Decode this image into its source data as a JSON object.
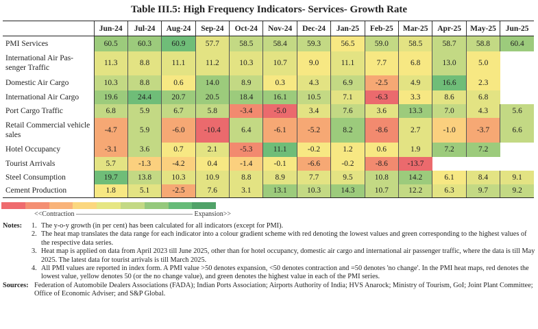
{
  "title": "Table III.5: High Frequency Indicators- Services- Growth Rate",
  "palette": {
    "R": "#eb6a6d",
    "RO": "#f28a6f",
    "O": "#f6a874",
    "LO": "#fbd07e",
    "Y": "#f7e883",
    "YG": "#e3e383",
    "LG": "#c3d984",
    "G": "#9ccb7c",
    "DG": "#6fbd78"
  },
  "table": {
    "columns": [
      "Jun-24",
      "Jul-24",
      "Aug-24",
      "Sep-24",
      "Oct-24",
      "Nov-24",
      "Dec-24",
      "Jan-25",
      "Feb-25",
      "Mar-25",
      "Apr-25",
      "May-25",
      "Jun-25"
    ],
    "rows": [
      {
        "label": "PMI Services",
        "values": [
          "60.5",
          "60.3",
          "60.9",
          "57.7",
          "58.5",
          "58.4",
          "59.3",
          "56.5",
          "59.0",
          "58.5",
          "58.7",
          "58.8",
          "60.4"
        ],
        "colors": [
          "G",
          "G",
          "DG",
          "YG",
          "LG",
          "LG",
          "LG",
          "Y",
          "LG",
          "YG",
          "LG",
          "LG",
          "G"
        ]
      },
      {
        "label": "International Air Pas- senger Traffic",
        "values": [
          "11.3",
          "8.8",
          "11.1",
          "11.2",
          "10.3",
          "10.7",
          "9.0",
          "11.1",
          "7.7",
          "6.8",
          "13.0",
          "5.0",
          ""
        ],
        "colors": [
          "YG",
          "YG",
          "YG",
          "YG",
          "YG",
          "YG",
          "Y",
          "YG",
          "Y",
          "Y",
          "LG",
          "Y",
          ""
        ]
      },
      {
        "label": "Domestic Air Cargo",
        "values": [
          "10.3",
          "8.8",
          "0.6",
          "14.0",
          "8.9",
          "0.3",
          "4.3",
          "6.9",
          "-2.5",
          "4.9",
          "16.6",
          "2.3",
          ""
        ],
        "colors": [
          "LG",
          "LG",
          "Y",
          "G",
          "LG",
          "Y",
          "YG",
          "LG",
          "O",
          "YG",
          "DG",
          "Y",
          ""
        ]
      },
      {
        "label": "International Air Cargo",
        "values": [
          "19.6",
          "24.4",
          "20.7",
          "20.5",
          "18.4",
          "16.1",
          "10.5",
          "7.1",
          "-6.3",
          "3.3",
          "8.6",
          "6.8",
          ""
        ],
        "colors": [
          "G",
          "DG",
          "G",
          "G",
          "G",
          "G",
          "LG",
          "YG",
          "R",
          "Y",
          "YG",
          "YG",
          ""
        ]
      },
      {
        "label": "Port Cargo Traffic",
        "values": [
          "6.8",
          "5.9",
          "6.7",
          "5.8",
          "-3.4",
          "-5.0",
          "3.4",
          "7.6",
          "3.6",
          "13.3",
          "7.0",
          "4.3",
          "5.6"
        ],
        "colors": [
          "LG",
          "LG",
          "LG",
          "LG",
          "RO",
          "R",
          "YG",
          "LG",
          "YG",
          "G",
          "LG",
          "YG",
          "LG"
        ]
      },
      {
        "label": "Retail Commercial vehicle sales",
        "values": [
          "-4.7",
          "5.9",
          "-6.0",
          "-10.4",
          "6.4",
          "-6.1",
          "-5.2",
          "8.2",
          "-8.6",
          "2.7",
          "-1.0",
          "-3.7",
          "6.6"
        ],
        "colors": [
          "O",
          "LG",
          "O",
          "R",
          "LG",
          "O",
          "O",
          "G",
          "RO",
          "YG",
          "LO",
          "O",
          "LG"
        ]
      },
      {
        "label": "Hotel Occupancy",
        "values": [
          "-3.1",
          "3.6",
          "0.7",
          "2.1",
          "-5.3",
          "11.1",
          "-0.2",
          "1.2",
          "0.6",
          "1.9",
          "7.2",
          "7.2",
          ""
        ],
        "colors": [
          "O",
          "LG",
          "Y",
          "YG",
          "RO",
          "DG",
          "Y",
          "Y",
          "Y",
          "YG",
          "G",
          "G",
          ""
        ]
      },
      {
        "label": "Tourist Arrivals",
        "values": [
          "5.7",
          "-1.3",
          "-4.2",
          "0.4",
          "-1.4",
          "-0.1",
          "-6.6",
          "-0.2",
          "-8.6",
          "-13.7",
          "",
          "",
          ""
        ],
        "colors": [
          "YG",
          "LO",
          "LO",
          "Y",
          "LO",
          "Y",
          "O",
          "Y",
          "RO",
          "R",
          "",
          "",
          ""
        ]
      },
      {
        "label": "Steel Consumption",
        "values": [
          "19.7",
          "13.8",
          "10.3",
          "10.9",
          "8.8",
          "8.9",
          "7.7",
          "9.5",
          "10.8",
          "14.2",
          "6.1",
          "8.4",
          "9.1"
        ],
        "colors": [
          "DG",
          "LG",
          "YG",
          "YG",
          "YG",
          "YG",
          "YG",
          "YG",
          "LG",
          "G",
          "Y",
          "YG",
          "YG"
        ]
      },
      {
        "label": "Cement Production",
        "values": [
          "1.8",
          "5.1",
          "-2.5",
          "7.6",
          "3.1",
          "13.1",
          "10.3",
          "14.3",
          "10.7",
          "12.2",
          "6.3",
          "9.7",
          "9.2"
        ],
        "colors": [
          "Y",
          "YG",
          "O",
          "YG",
          "YG",
          "G",
          "LG",
          "G",
          "LG",
          "LG",
          "YG",
          "LG",
          "LG"
        ]
      }
    ]
  },
  "legend": {
    "colors": [
      "#ef6b6e",
      "#f48f73",
      "#f9b37a",
      "#fbd77f",
      "#e6e683",
      "#c3d984",
      "#95c97c",
      "#66bb78",
      "#50a268"
    ],
    "label": "<<Contraction ————————————————— Expansion>>"
  },
  "notes": {
    "label": "Notes:",
    "items": [
      {
        "num": "1.",
        "text": "The y-o-y growth (in per cent) has been calculated for all indicators (except for PMI)."
      },
      {
        "num": "2.",
        "text": "The heat map translates the data range for each indicator into a colour gradient scheme with red denoting the lowest values and green corresponding to the highest values of the respective data series."
      },
      {
        "num": "3.",
        "text": "Heat map is applied on data from April 2023 till June 2025, other than for hotel occupancy, domestic air cargo and international air passenger traffic, where the data is till May 2025. The latest data for tourist arrivals is till March 2025."
      },
      {
        "num": "4.",
        "text": "All PMI values are reported in index form. A PMI value >50 denotes expansion, <50 denotes contraction and =50 denotes 'no change'. In the PMI heat maps, red denotes the lowest value, yellow denotes 50 (or the no change value), and green denotes the highest value in each of the PMI series."
      }
    ]
  },
  "sources": {
    "label": "Sources:",
    "text": "Federation of Automobile Dealers Associations (FADA); Indian Ports Association; Airports Authority of India; HVS Anarock; Ministry of Tourism, GoI; Joint Plant Committee; Office of Economic Adviser; and S&P Global."
  }
}
